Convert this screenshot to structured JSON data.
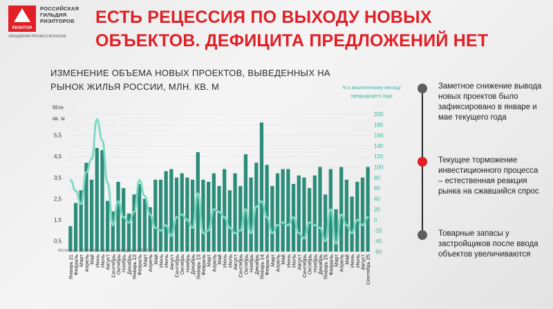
{
  "brand": {
    "mark_text": "РИЭЛТОР",
    "lines": [
      "РОССИЙСКАЯ",
      "ГИЛЬДИЯ",
      "РИЭЛТОРОВ"
    ],
    "subtitle": "ОБЪЕДИНЯЯ ПРОФЕССИОНАЛОВ",
    "accent_color": "#e21e26"
  },
  "headline": "ЕСТЬ РЕЦЕССИЯ ПО ВЫХОДУ НОВЫХ ОБЪЕКТОВ. ДЕФИЦИТА ПРЕДЛОЖЕНИЙ НЕТ",
  "chart_title": "ИЗМЕНЕНИЕ ОБЪЕМА НОВЫХ ПРОЕКТОВ, ВЫВЕДЕННЫХ НА РЫНОК ЖИЛЬЯ РОССИИ, МЛН. КВ. М",
  "left_unit_lines": [
    "Млн.",
    "кв. м"
  ],
  "right_unit": "% к аналогичному месяцу предыдущего года",
  "source": "Источник - t.me/erzrf на основании данных ЕИСЖС",
  "chart_data": {
    "type": "bar",
    "categories": [
      "Январь 21",
      "Февраль 21",
      "Март 21",
      "Апрель 21",
      "Май 21",
      "Июнь 21",
      "Июль 21",
      "Август 21",
      "Сентябрь 21",
      "Октябрь 21",
      "Ноябрь 21",
      "Декабрь 21",
      "Январь 22",
      "Февраль 22",
      "Март 22",
      "Апрель 22",
      "Май 22",
      "Июнь 22",
      "Июль 22",
      "Август 22",
      "Сентябрь 22",
      "Октябрь 22",
      "Ноябрь 22",
      "Декабрь 22",
      "Январь 23",
      "Февраль 23",
      "Март 23",
      "Апрель 23",
      "Май 23",
      "Июнь 23",
      "Июль 23",
      "Август 23",
      "Сентябрь 23",
      "Октябрь 23",
      "Ноябрь 23",
      "Декабрь 23",
      "Январь 24",
      "Февраль 24",
      "Март 24",
      "Апрель 24",
      "Май 24",
      "Июнь 24",
      "Июль 24",
      "Август 24",
      "Сентябрь 24",
      "Октябрь 24",
      "Ноябрь 24",
      "Декабрь 24",
      "Январь 25",
      "Февраль 25",
      "Март 25",
      "Апрель 25",
      "Май 25",
      "Июнь 25",
      "Июль 25",
      "Август 25",
      "Сентябрь 25"
    ],
    "x_tick_labels": [
      "Январь 21",
      "Февраль",
      "Март",
      "Апрель",
      "Май",
      "Июнь",
      "Июль",
      "Август",
      "Сентябрь",
      "Октябрь",
      "Ноябрь",
      "Декабрь",
      "Январь 22",
      "Февраль",
      "Март",
      "Апрель",
      "Май",
      "Июнь",
      "Июль",
      "Август",
      "Сентябрь",
      "Октябрь",
      "Ноябрь",
      "Декабрь",
      "Январь 23",
      "Февраль",
      "Март",
      "Апрель",
      "Май",
      "Июнь",
      "Июль",
      "Август",
      "Сентябрь",
      "Октябрь",
      "Ноябрь",
      "Декабрь",
      "Январь 24",
      "Февраль",
      "Март",
      "Апрель",
      "Май",
      "Июнь",
      "Июль",
      "Август",
      "Сентябрь",
      "Октябрь",
      "Ноябрь",
      "Декабрь",
      "Январь 25",
      "Февраль",
      "Март",
      "Апрель",
      "Май",
      "Июнь",
      "Июль",
      "Август",
      "Сентябрь 25"
    ],
    "series": [
      {
        "kind": "bar",
        "axis": "left",
        "color": "#2a8c79",
        "values": [
          1.2,
          2.3,
          2.9,
          4.2,
          3.4,
          4.9,
          4.8,
          2.4,
          1.9,
          3.3,
          3.0,
          1.8,
          2.7,
          3.2,
          2.5,
          2.1,
          3.4,
          3.4,
          3.8,
          3.9,
          3.5,
          3.7,
          3.5,
          3.4,
          4.7,
          3.4,
          3.3,
          3.7,
          3.1,
          3.9,
          2.9,
          3.7,
          3.1,
          4.6,
          3.5,
          4.2,
          6.1,
          4.1,
          3.1,
          3.7,
          3.9,
          3.9,
          3.2,
          3.6,
          3.5,
          3.0,
          3.6,
          4.0,
          2.7,
          3.9,
          2.0,
          4.0,
          3.4,
          2.6,
          3.3,
          3.5,
          4.0
        ]
      },
      {
        "kind": "line",
        "axis": "right",
        "color": "#7dd9c3",
        "values": [
          75,
          55,
          30,
          90,
          115,
          190,
          150,
          70,
          -10,
          35,
          5,
          -5,
          15,
          75,
          45,
          10,
          -15,
          -20,
          -10,
          -30,
          5,
          10,
          0,
          -15,
          50,
          -25,
          -20,
          20,
          15,
          5,
          -15,
          -25,
          -20,
          20,
          -25,
          25,
          35,
          5,
          -25,
          -10,
          -5,
          -10,
          5,
          -25,
          -35,
          -5,
          -10,
          -15,
          -40,
          20,
          -45,
          10,
          -10,
          -25,
          0,
          -10,
          5
        ]
      }
    ],
    "y_left": {
      "ticks": [
        "0,5",
        "1,5",
        "2,5",
        "3,5",
        "4,5",
        "5,5"
      ],
      "ylim": [
        0,
        6.5
      ]
    },
    "y_right": {
      "ticks": [
        "-60",
        "-40",
        "-20",
        "0",
        "20",
        "40",
        "60",
        "80",
        "100",
        "120",
        "140",
        "160",
        "180",
        "200"
      ],
      "ylim": [
        -60,
        200
      ]
    },
    "grid": true
  },
  "notes": [
    {
      "text": "Заметное снижение вывода новых проектов было зафиксировано в январе и мае текущего года",
      "dot_color": "#5e5e5e"
    },
    {
      "text": "Текущее торможение инвестиционного процесса – естественная реакция рынка на сжавшийся спрос",
      "dot_color": "#e21e26"
    },
    {
      "text": "Товарные запасы у застройщиков после ввода объектов увеличиваются",
      "dot_color": "#5e5e5e"
    }
  ]
}
